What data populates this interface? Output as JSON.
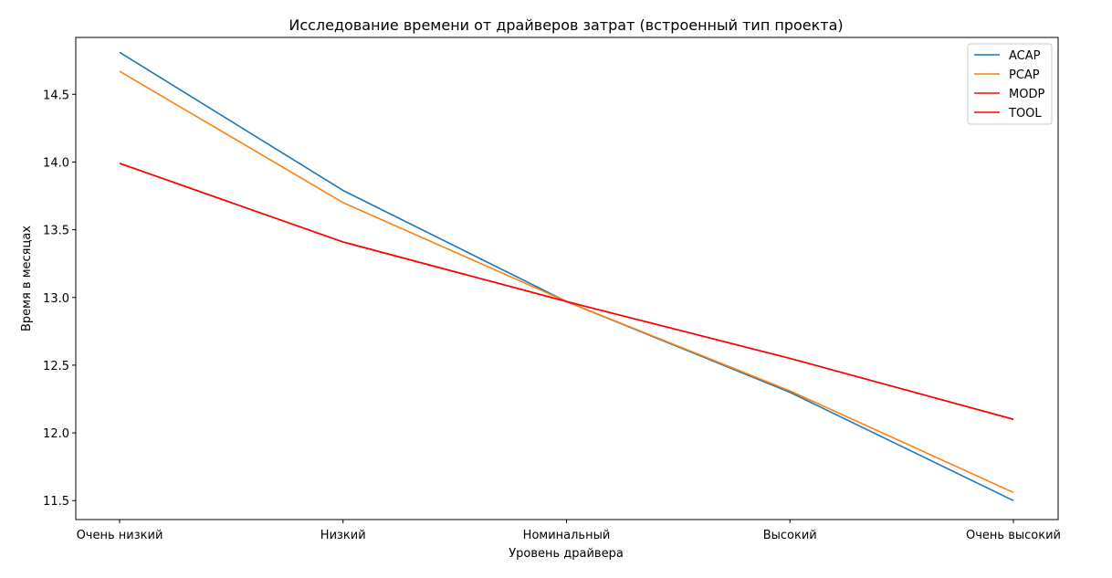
{
  "chart_data": {
    "type": "line",
    "title": "Исследование времени от драйверов затрат (встроенный тип проекта)",
    "xlabel": "Уровень драйвера",
    "ylabel": "Время в месяцах",
    "categories": [
      "Очень низкий",
      "Низкий",
      "Номинальный",
      "Высокий",
      "Очень высокий"
    ],
    "ylim": [
      11.36,
      14.92
    ],
    "yticks": [
      "11.5",
      "12.0",
      "12.5",
      "13.0",
      "13.5",
      "14.0",
      "14.5"
    ],
    "grid": false,
    "legend_position": "top-right",
    "series": [
      {
        "name": "ACAP",
        "color": "#1f77b4",
        "values": [
          14.81,
          13.79,
          12.97,
          12.3,
          11.5
        ]
      },
      {
        "name": "PCAP",
        "color": "#ff7f0e",
        "values": [
          14.67,
          13.7,
          12.97,
          12.31,
          11.56
        ]
      },
      {
        "name": "MODP",
        "color": "#e6140a",
        "values": [
          13.99,
          13.41,
          12.97,
          12.55,
          12.1
        ]
      },
      {
        "name": "TOOL",
        "color": "#ff0000",
        "values": [
          13.99,
          13.41,
          12.97,
          12.55,
          12.1
        ]
      }
    ]
  }
}
